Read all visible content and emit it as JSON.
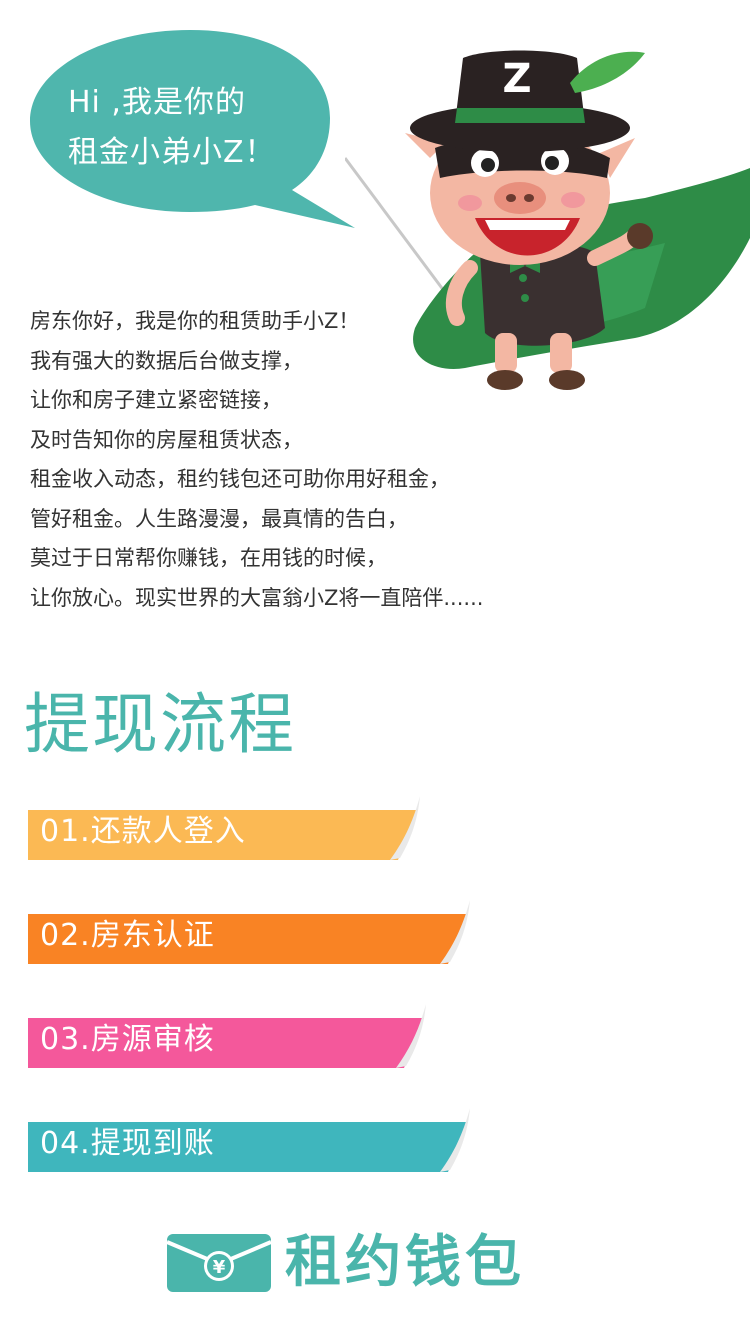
{
  "bubble": {
    "line1": "Hi ,我是你的",
    "line2": "租金小弟小Z！"
  },
  "mascot": {
    "hat_letter": "Z"
  },
  "intro": {
    "lines": [
      "房东你好，我是你的租赁助手小Z！",
      "我有强大的数据后台做支撑，",
      "让你和房子建立紧密链接，",
      "及时告知你的房屋租赁状态，",
      "租金收入动态，租约钱包还可助你用好租金，",
      "管好租金。人生路漫漫，最真情的告白，",
      "莫过于日常帮你赚钱，在用钱的时候，",
      "让你放心。现实世界的大富翁小Z将一直陪伴......"
    ]
  },
  "section_title": "提现流程",
  "steps": [
    {
      "label": "01.还款人登入",
      "color": "#fbb954"
    },
    {
      "label": "02.房东认证",
      "color": "#f98324"
    },
    {
      "label": "03.房源审核",
      "color": "#f4589b"
    },
    {
      "label": "04.提现到账",
      "color": "#3fb6bd"
    }
  ],
  "brand": {
    "name": "租约钱包",
    "logo_symbol": "¥",
    "color": "#4ab5ab"
  },
  "colors": {
    "teal": "#4ab5ab",
    "bubble": "#4fb6ad"
  }
}
